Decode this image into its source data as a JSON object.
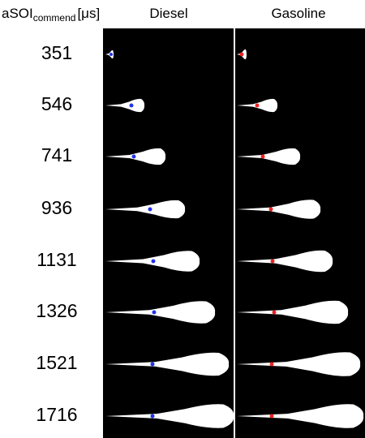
{
  "header": {
    "label": "aSOI",
    "label_subscript": "commend",
    "unit": "[μs]",
    "columns": [
      "Diesel",
      "Gasoline"
    ]
  },
  "rows": [
    351,
    546,
    741,
    936,
    1131,
    1326,
    1521,
    1716
  ]
}
